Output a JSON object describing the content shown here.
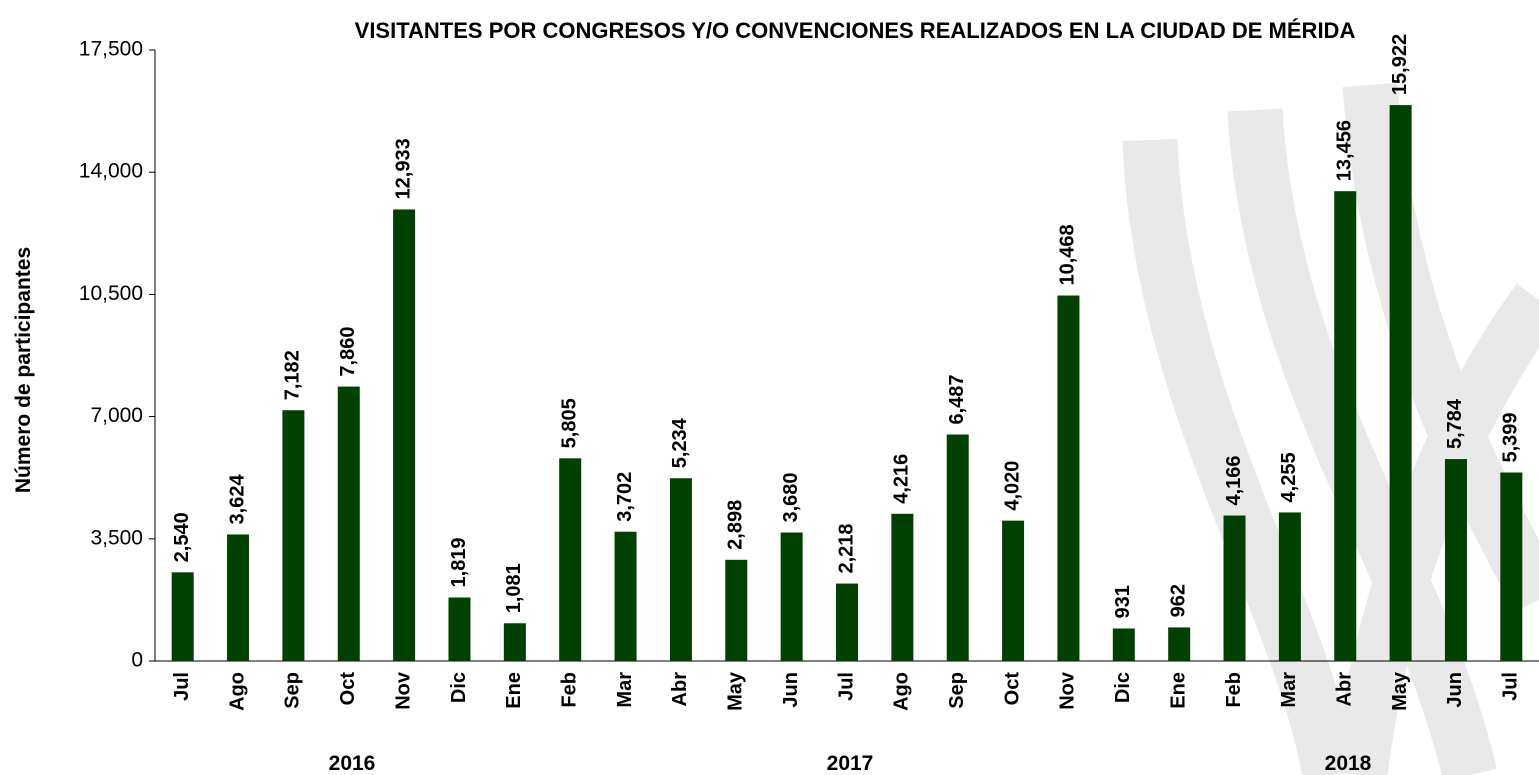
{
  "chart_data": {
    "type": "bar",
    "title": "VISITANTES POR CONGRESOS Y/O CONVENCIONES REALIZADOS EN LA CIUDAD DE MÉRIDA",
    "y_label": "Número de participantes",
    "categories": [
      "Jul",
      "Ago",
      "Sep",
      "Oct",
      "Nov",
      "Dic",
      "Ene",
      "Feb",
      "Mar",
      "Abr",
      "May",
      "Jun",
      "Jul",
      "Ago",
      "Sep",
      "Oct",
      "Nov",
      "Dic",
      "Ene",
      "Feb",
      "Mar",
      "Abr",
      "May",
      "Jun",
      "Jul"
    ],
    "groups": [
      "2016",
      "2017",
      "2018"
    ],
    "values": [
      2540,
      3624,
      7182,
      7860,
      12933,
      1819,
      1081,
      5805,
      3702,
      5234,
      2898,
      3680,
      2218,
      4216,
      6487,
      4020,
      10468,
      931,
      962,
      4166,
      4255,
      13456,
      15922,
      5784,
      5399
    ],
    "value_labels": [
      "2,540",
      "3,624",
      "7,182",
      "7,860",
      "12,933",
      "1,819",
      "1,081",
      "5,805",
      "3,702",
      "5,234",
      "2,898",
      "3,680",
      "2,218",
      "4,216",
      "6,487",
      "4,020",
      "10,468",
      "931",
      "962",
      "4,166",
      "4,255",
      "13,456",
      "15,922",
      "5,784",
      "5,399"
    ],
    "color": "#004000",
    "ylim": [
      0,
      17500
    ],
    "yticks": [
      0,
      {
        "value": 3500,
        "label": "3,500"
      },
      {
        "value": 7000,
        "label": "7,000"
      },
      {
        "value": 10500,
        "label": "10,500"
      },
      {
        "value": 14000,
        "label": "14,000"
      },
      {
        "value": 17500,
        "label": "17,500"
      }
    ],
    "grid": false
  }
}
